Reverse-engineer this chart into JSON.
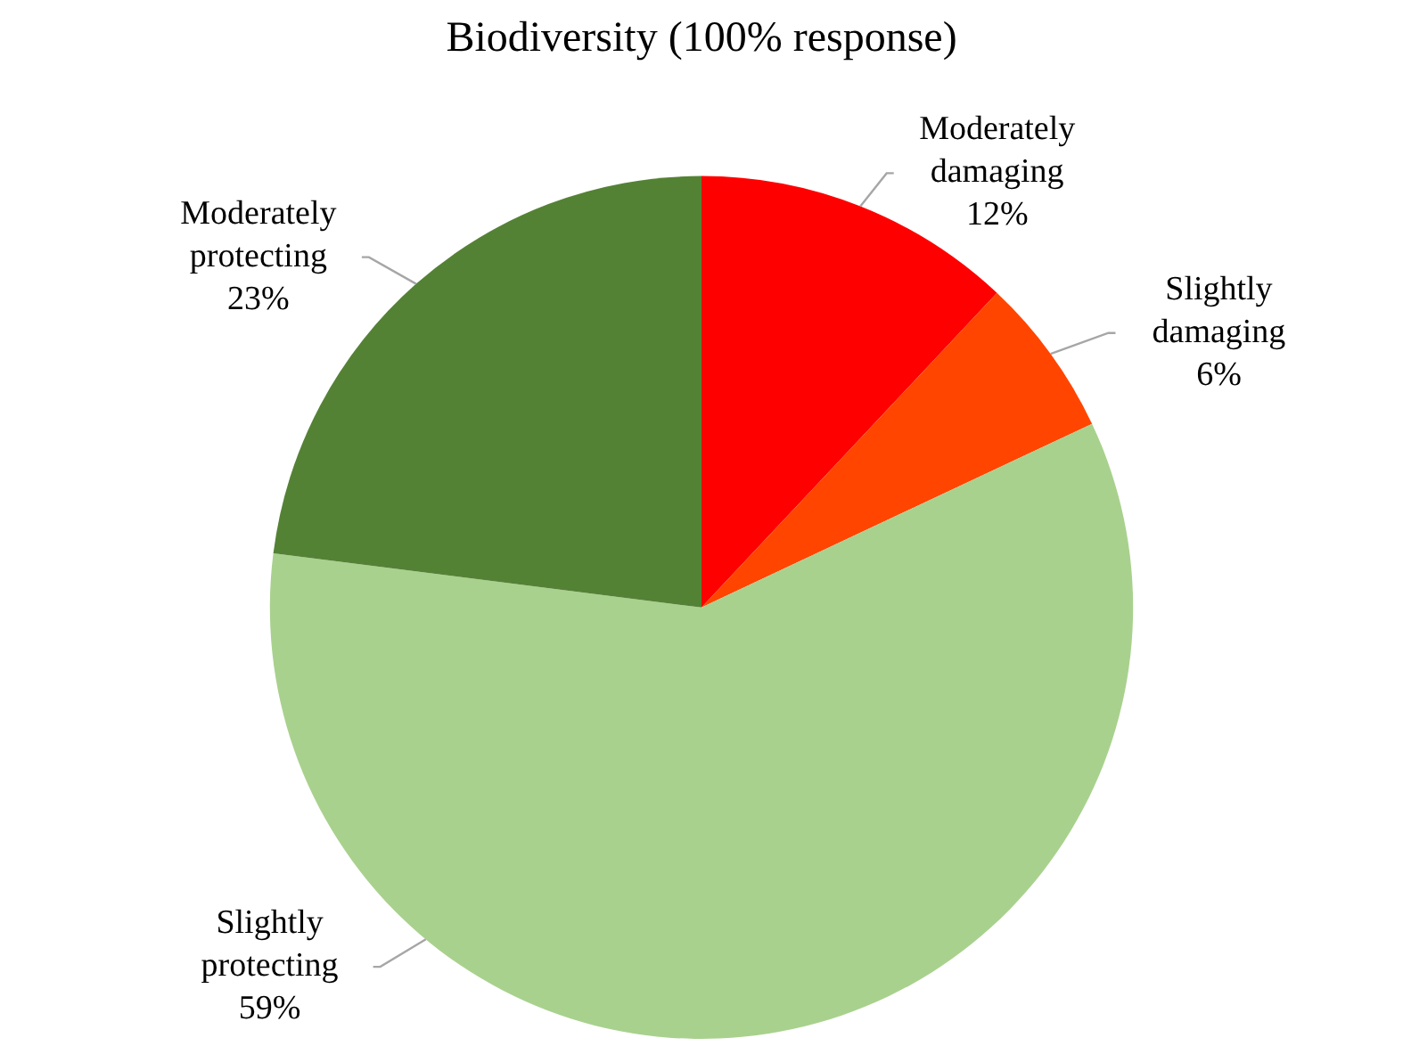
{
  "chart_data": {
    "type": "pie",
    "title": "Biodiversity (100% response)",
    "categories": [
      "Moderately damaging",
      "Slightly damaging",
      "Slightly protecting",
      "Moderately protecting"
    ],
    "values": [
      12,
      6,
      59,
      23
    ],
    "colors": [
      "#ff0000",
      "#ff4500",
      "#a9d18e",
      "#548235"
    ],
    "value_labels": [
      "12%",
      "6%",
      "59%",
      "23%"
    ],
    "legend": false
  }
}
